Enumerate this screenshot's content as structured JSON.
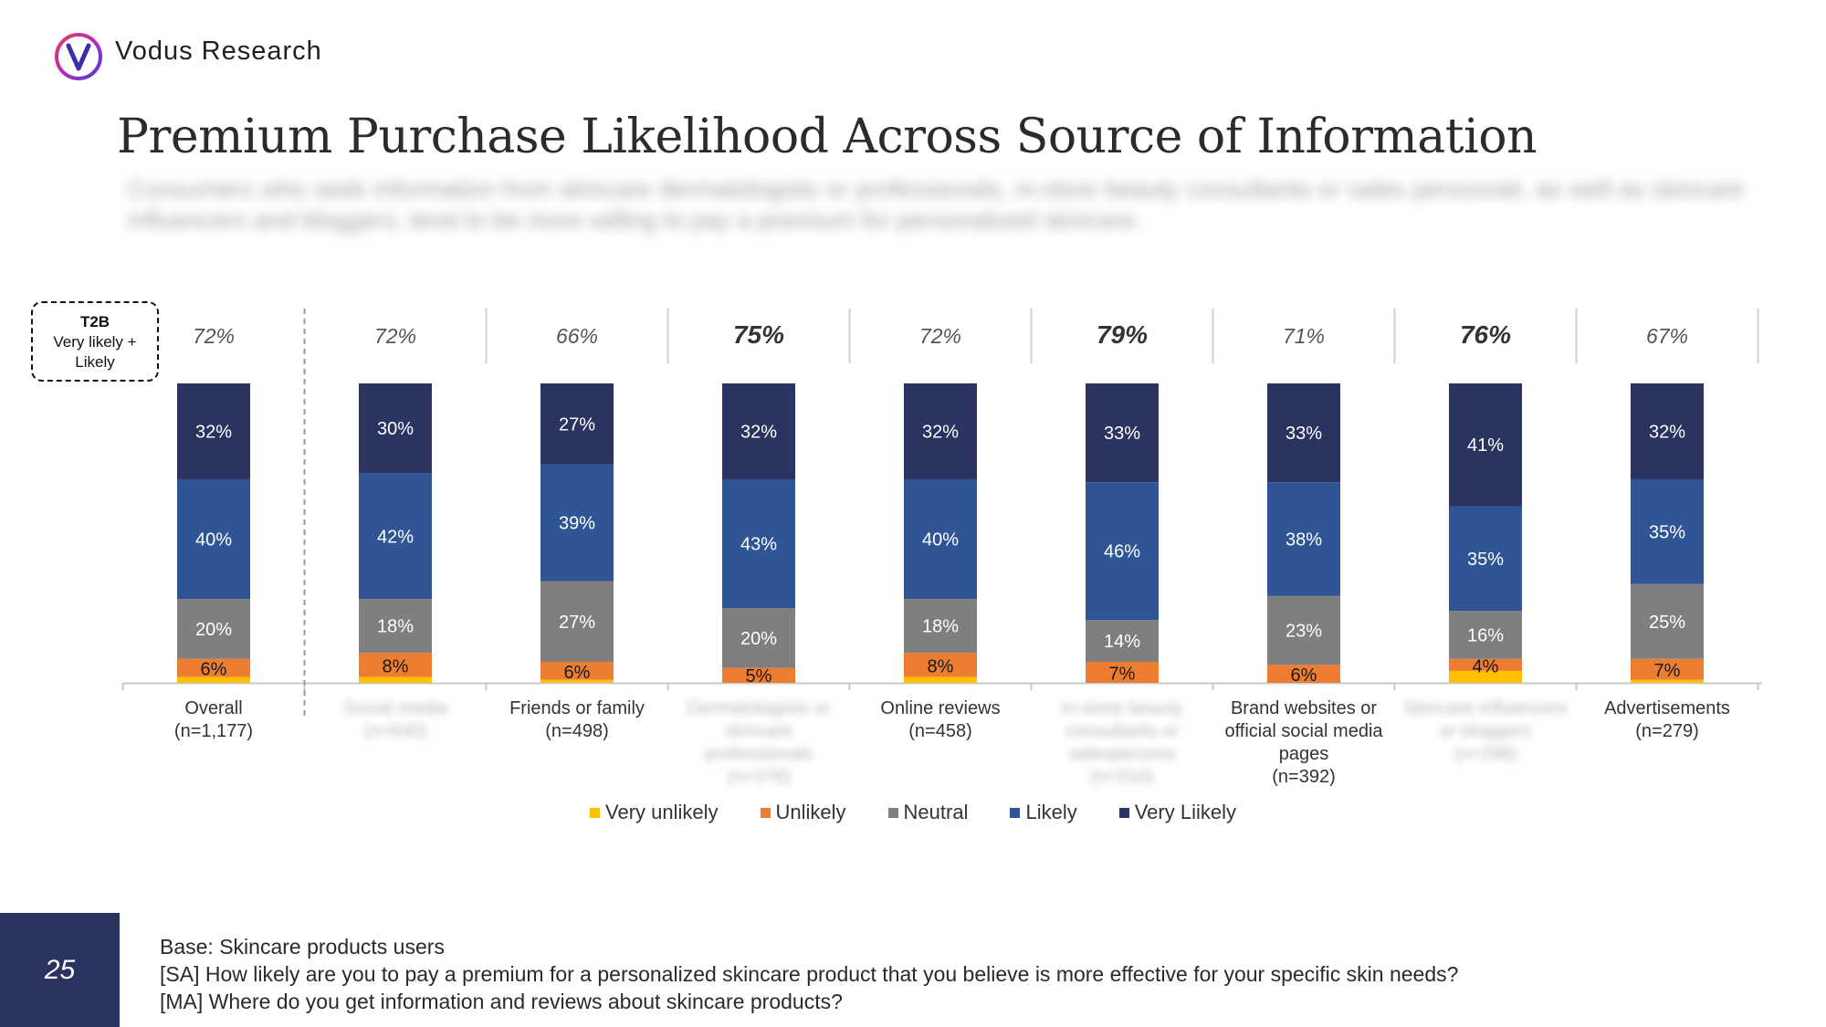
{
  "brand": {
    "name": "Vodus Research"
  },
  "title": "Premium Purchase Likelihood Across Source of Information",
  "subtitle": "Consumers who seek information from skincare dermatologists or professionals, in-store beauty consultants or sales personnel, as well as skincare influencers and bloggers, tend to be more willing to pay a premium for personalized skincare.",
  "t2b_box": {
    "head": "T2B",
    "line1": "Very likely +",
    "line2": "Likely"
  },
  "chart_data": {
    "type": "bar",
    "stacked": true,
    "categories": [
      "Overall (n=1,177)",
      "Social media (n=640)",
      "Friends or family (n=498)",
      "Dermatologists or skincare professionals (n=376)",
      "Online reviews (n=458)",
      "In-store beauty consultants or salespersons (n=310)",
      "Brand websites or official social media pages (n=392)",
      "Skincare influencers or bloggers (n=298)",
      "Advertisements (n=279)"
    ],
    "category_lines": [
      [
        "Overall",
        "(n=1,177)"
      ],
      [
        "Social media",
        "(n=640)"
      ],
      [
        "Friends or family",
        "(n=498)"
      ],
      [
        "Dermatologists or",
        "skincare",
        "professionals",
        "(n=376)"
      ],
      [
        "Online reviews",
        "(n=458)"
      ],
      [
        "In-store beauty",
        "consultants or",
        "salespersons",
        "(n=310)"
      ],
      [
        "Brand websites or",
        "official social media",
        "pages",
        "(n=392)"
      ],
      [
        "Skincare influencers",
        "or bloggers",
        "(n=298)"
      ],
      [
        "Advertisements",
        "(n=279)"
      ]
    ],
    "blurred_categories": [
      1,
      3,
      5,
      7
    ],
    "t2b": [
      "72%",
      "72%",
      "66%",
      "75%",
      "72%",
      "79%",
      "71%",
      "76%",
      "67%"
    ],
    "t2b_highlight": [
      false,
      false,
      false,
      true,
      false,
      true,
      false,
      true,
      false
    ],
    "series": [
      {
        "name": "Very unlikely",
        "color": "#ffc000",
        "values": [
          2,
          2,
          1,
          0,
          2,
          0,
          0,
          4,
          1
        ],
        "labels": [
          "",
          "",
          "",
          "",
          "",
          "",
          "",
          "",
          ""
        ]
      },
      {
        "name": "Unlikely",
        "color": "#ed7d31",
        "values": [
          6,
          8,
          6,
          5,
          8,
          7,
          6,
          4,
          7
        ],
        "labels": [
          "6%",
          "8%",
          "6%",
          "5%",
          "8%",
          "7%",
          "6%",
          "4%",
          "7%"
        ]
      },
      {
        "name": "Neutral",
        "color": "#7f7f7f",
        "values": [
          20,
          18,
          27,
          20,
          18,
          14,
          23,
          16,
          25
        ],
        "labels": [
          "20%",
          "18%",
          "27%",
          "20%",
          "18%",
          "14%",
          "23%",
          "16%",
          "25%"
        ]
      },
      {
        "name": "Likely",
        "color": "#2f5597",
        "values": [
          40,
          42,
          39,
          43,
          40,
          46,
          38,
          35,
          35
        ],
        "labels": [
          "40%",
          "42%",
          "39%",
          "43%",
          "40%",
          "46%",
          "38%",
          "35%",
          "35%"
        ]
      },
      {
        "name": "Very Liikely",
        "color": "#2b3360",
        "values": [
          32,
          30,
          27,
          32,
          32,
          33,
          33,
          41,
          32
        ],
        "labels": [
          "32%",
          "30%",
          "27%",
          "32%",
          "32%",
          "33%",
          "33%",
          "41%",
          "32%"
        ]
      }
    ],
    "ylim": [
      0,
      100
    ],
    "legend_position": "bottom",
    "grid": false
  },
  "footnotes": {
    "base": "Base: Skincare products users",
    "q1": "[SA] How likely are you to pay a premium for a personalized skincare product that you believe is more effective for your specific skin needs?",
    "q2": "[MA] Where do you get information and reviews about skincare products?"
  },
  "page_number": "25"
}
